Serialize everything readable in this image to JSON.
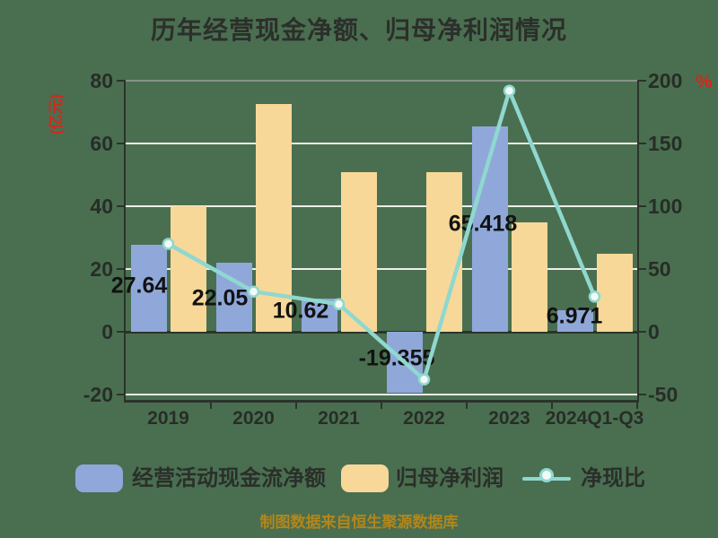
{
  "title": "历年经营现金净额、归母净利润情况",
  "caption": "制图数据来自恒生聚源数据库",
  "colors": {
    "background": "#4a6f50",
    "bar_operating_cash": "#8fa8d9",
    "bar_net_profit": "#f7d898",
    "line_ratio": "#8fd8d0",
    "marker_fill": "#f2faf7",
    "grid": "#ecefe9",
    "axis": "#2b332b",
    "title_text": "#2c2f2b",
    "red_axis_unit": "#d3281e",
    "caption_gold": "#b3861a",
    "value_label": "#121212"
  },
  "chart_data": {
    "type": "bar+line",
    "categories": [
      "2019",
      "2020",
      "2021",
      "2022",
      "2023",
      "2024Q1-Q3"
    ],
    "series": [
      {
        "name": "经营活动现金流净额",
        "type": "bar",
        "axis": "left",
        "color": "#8fa8d9",
        "values": [
          27.64,
          22.05,
          10.62,
          -19.355,
          65.418,
          6.971
        ],
        "labels": [
          "27.64",
          "22.05",
          "10.62",
          "-19.355",
          "65.418",
          "6.971"
        ]
      },
      {
        "name": "归母净利润",
        "type": "bar",
        "axis": "left",
        "color": "#f7d898",
        "values": [
          40,
          72.5,
          51,
          51,
          35,
          25
        ]
      },
      {
        "name": "净现比",
        "type": "line",
        "axis": "right",
        "color": "#8fd8d0",
        "marker": "circle",
        "values": [
          70,
          32,
          22,
          -38,
          192,
          28
        ]
      }
    ],
    "left_axis": {
      "label": "(亿元)",
      "ticks": [
        80,
        60,
        40,
        20,
        0,
        -20
      ],
      "range": [
        80,
        -22
      ]
    },
    "right_axis": {
      "label": "%",
      "ticks": [
        200,
        150,
        100,
        50,
        0,
        -50
      ],
      "range": [
        200,
        -55
      ]
    },
    "legend": [
      "经营活动现金流净额",
      "归母净利润",
      "净现比"
    ],
    "legend_position": "bottom",
    "grid": true
  }
}
